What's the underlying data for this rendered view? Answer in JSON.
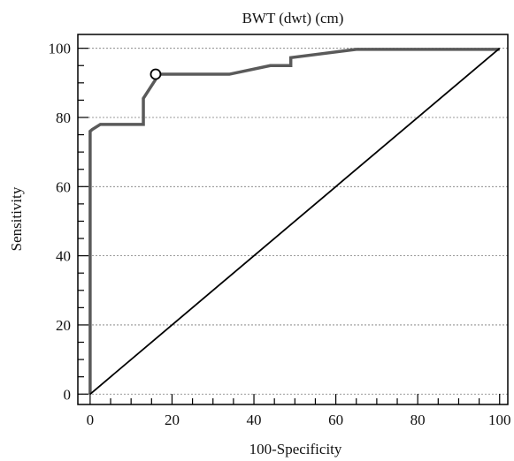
{
  "chart_data": {
    "type": "line",
    "title": "BWT (dwt) (cm)",
    "xlabel": "100-Specificity",
    "ylabel": "Sensitivity",
    "xlim": [
      -3,
      102
    ],
    "ylim": [
      -3,
      104
    ],
    "xticks": [
      0,
      20,
      40,
      60,
      80,
      100
    ],
    "yticks": [
      0,
      20,
      40,
      60,
      80,
      100
    ],
    "grid": {
      "horizontal_dashed": true,
      "vertical": false
    },
    "legend": "none",
    "series": [
      {
        "style": "roc-curve",
        "color": "#5a5a5a",
        "x": [
          0,
          0,
          0,
          0,
          0.5,
          2.5,
          13,
          13,
          16,
          16,
          34,
          44,
          49,
          49,
          65,
          100
        ],
        "y": [
          0,
          20,
          40,
          76,
          76.5,
          78,
          78,
          85.5,
          91,
          92.5,
          92.5,
          95,
          95,
          97.3,
          99.7,
          99.7
        ]
      },
      {
        "style": "reference-diagonal",
        "color": "#000000",
        "x": [
          0,
          100
        ],
        "y": [
          0,
          100
        ]
      }
    ],
    "marker": {
      "name": "optimal-cutoff",
      "x": 16,
      "y": 92.5
    }
  }
}
